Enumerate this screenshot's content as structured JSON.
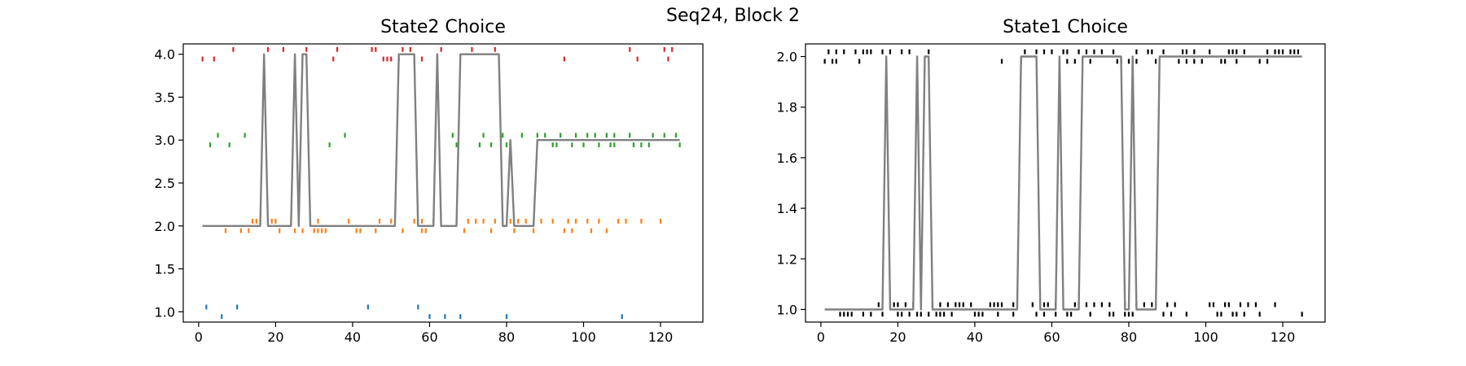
{
  "suptitle": "Seq24, Block 2",
  "chart_data": [
    {
      "type": "line",
      "title": "State2 Choice",
      "xlabel": "",
      "ylabel": "",
      "xlim": [
        -4,
        131
      ],
      "ylim": [
        0.88,
        4.12
      ],
      "xticks": [
        0,
        20,
        40,
        60,
        80,
        100,
        120
      ],
      "yticks": [
        1.0,
        1.5,
        2.0,
        2.5,
        3.0,
        3.5,
        4.0
      ],
      "ytick_labels": [
        "1.0",
        "1.5",
        "2.0",
        "2.5",
        "3.0",
        "3.5",
        "4.0"
      ],
      "tick_length": 0.0556,
      "line": {
        "color": "#808080",
        "x": [
          1,
          2,
          3,
          4,
          5,
          6,
          7,
          8,
          9,
          10,
          11,
          12,
          13,
          14,
          15,
          16,
          17,
          18,
          19,
          20,
          21,
          22,
          23,
          24,
          25,
          26,
          27,
          28,
          29,
          30,
          31,
          32,
          33,
          34,
          35,
          36,
          37,
          38,
          39,
          40,
          41,
          42,
          43,
          44,
          45,
          46,
          47,
          48,
          49,
          50,
          51,
          52,
          53,
          54,
          55,
          56,
          57,
          58,
          59,
          60,
          61,
          62,
          63,
          64,
          65,
          66,
          67,
          68,
          69,
          70,
          71,
          72,
          73,
          74,
          75,
          76,
          77,
          78,
          79,
          80,
          81,
          82,
          83,
          84,
          85,
          86,
          87,
          88,
          89,
          90,
          91,
          92,
          93,
          94,
          95,
          96,
          97,
          98,
          99,
          100,
          101,
          102,
          103,
          104,
          105,
          106,
          107,
          108,
          109,
          110,
          111,
          112,
          113,
          114,
          115,
          116,
          117,
          118,
          119,
          120,
          121,
          122,
          123,
          124,
          125
        ],
        "y": [
          2,
          2,
          2,
          2,
          2,
          2,
          2,
          2,
          2,
          2,
          2,
          2,
          2,
          2,
          2,
          2,
          4,
          2,
          2,
          2,
          2,
          2,
          2,
          2,
          4,
          2,
          4,
          4,
          2,
          2,
          2,
          2,
          2,
          2,
          2,
          2,
          2,
          2,
          2,
          2,
          2,
          2,
          2,
          2,
          2,
          2,
          2,
          2,
          2,
          2,
          2,
          4,
          4,
          4,
          4,
          4,
          2,
          2,
          2,
          2,
          2,
          4,
          2,
          2,
          2,
          2,
          2,
          4,
          4,
          4,
          4,
          4,
          4,
          4,
          4,
          4,
          4,
          4,
          2,
          2,
          3,
          2,
          2,
          2,
          2,
          2,
          2,
          3,
          3,
          3,
          3,
          3,
          3,
          3,
          3,
          3,
          3,
          3,
          3,
          3,
          3,
          3,
          3,
          3,
          3,
          3,
          3,
          3,
          3,
          3,
          3,
          3,
          3,
          3,
          3,
          3,
          3,
          3,
          3,
          3,
          3,
          3,
          3,
          3,
          3
        ]
      },
      "tick_series": [
        {
          "level": 1,
          "color": "#1f77b4",
          "up": [
            2,
            10,
            44,
            57
          ],
          "down": [
            6,
            60,
            64,
            68,
            80,
            110
          ]
        },
        {
          "level": 2,
          "color": "#ff7f0e",
          "up": [
            14,
            15,
            16,
            19,
            20,
            24,
            26,
            29,
            31,
            39,
            47,
            50,
            56,
            58,
            61,
            67,
            70,
            72,
            74,
            77,
            81,
            83,
            85,
            89,
            92,
            96,
            98,
            101,
            104,
            109,
            111,
            115,
            120
          ],
          "down": [
            7,
            11,
            13,
            21,
            25,
            27,
            30,
            31,
            32,
            33,
            41,
            42,
            46,
            53,
            58,
            59,
            69,
            76,
            82,
            87,
            95,
            97,
            102,
            106
          ]
        },
        {
          "level": 3,
          "color": "#2ca02c",
          "up": [
            5,
            12,
            38,
            66,
            74,
            79,
            84,
            88,
            90,
            94,
            98,
            101,
            103,
            106,
            108,
            112,
            118,
            121,
            124
          ],
          "down": [
            3,
            8,
            34,
            67,
            73,
            76,
            80,
            92,
            93,
            97,
            100,
            104,
            107,
            108,
            113,
            115,
            117,
            125
          ]
        },
        {
          "level": 4,
          "color": "#d62728",
          "up": [
            9,
            18,
            22,
            28,
            36,
            45,
            46,
            53,
            55,
            63,
            71,
            77,
            112,
            121,
            123
          ],
          "down": [
            1,
            4,
            35,
            48,
            49,
            50,
            52,
            58,
            62,
            95,
            114,
            122
          ]
        }
      ]
    },
    {
      "type": "line",
      "title": "State1 Choice",
      "xlabel": "",
      "ylabel": "",
      "xlim": [
        -4,
        131
      ],
      "ylim": [
        0.95,
        2.05
      ],
      "xticks": [
        0,
        20,
        40,
        60,
        80,
        100,
        120
      ],
      "yticks": [
        1.0,
        1.2,
        1.4,
        1.6,
        1.8,
        2.0
      ],
      "ytick_labels": [
        "1.0",
        "1.2",
        "1.4",
        "1.6",
        "1.8",
        "2.0"
      ],
      "tick_length": 0.0189,
      "line": {
        "color": "#808080",
        "x": [
          1,
          2,
          3,
          4,
          5,
          6,
          7,
          8,
          9,
          10,
          11,
          12,
          13,
          14,
          15,
          16,
          17,
          18,
          19,
          20,
          21,
          22,
          23,
          24,
          25,
          26,
          27,
          28,
          29,
          30,
          31,
          32,
          33,
          34,
          35,
          36,
          37,
          38,
          39,
          40,
          41,
          42,
          43,
          44,
          45,
          46,
          47,
          48,
          49,
          50,
          51,
          52,
          53,
          54,
          55,
          56,
          57,
          58,
          59,
          60,
          61,
          62,
          63,
          64,
          65,
          66,
          67,
          68,
          69,
          70,
          71,
          72,
          73,
          74,
          75,
          76,
          77,
          78,
          79,
          80,
          81,
          82,
          83,
          84,
          85,
          86,
          87,
          88,
          89,
          90,
          91,
          92,
          93,
          94,
          95,
          96,
          97,
          98,
          99,
          100,
          101,
          102,
          103,
          104,
          105,
          106,
          107,
          108,
          109,
          110,
          111,
          112,
          113,
          114,
          115,
          116,
          117,
          118,
          119,
          120,
          121,
          122,
          123,
          124,
          125
        ],
        "y": [
          1,
          1,
          1,
          1,
          1,
          1,
          1,
          1,
          1,
          1,
          1,
          1,
          1,
          1,
          1,
          1,
          2,
          1,
          1,
          1,
          1,
          1,
          1,
          1,
          2,
          1,
          2,
          2,
          1,
          1,
          1,
          1,
          1,
          1,
          1,
          1,
          1,
          1,
          1,
          1,
          1,
          1,
          1,
          1,
          1,
          1,
          1,
          1,
          1,
          1,
          1,
          2,
          2,
          2,
          2,
          2,
          1,
          1,
          1,
          1,
          1,
          2,
          1,
          1,
          1,
          1,
          1,
          2,
          2,
          2,
          2,
          2,
          2,
          2,
          2,
          2,
          2,
          2,
          1,
          1,
          2,
          1,
          1,
          1,
          1,
          1,
          1,
          2,
          2,
          2,
          2,
          2,
          2,
          2,
          2,
          2,
          2,
          2,
          2,
          2,
          2,
          2,
          2,
          2,
          2,
          2,
          2,
          2,
          2,
          2,
          2,
          2,
          2,
          2,
          2,
          2,
          2,
          2,
          2,
          2,
          2,
          2,
          2,
          2,
          2
        ]
      },
      "tick_series": [
        {
          "level": 1,
          "color": "#000000",
          "up": [
            15,
            18,
            19,
            20,
            22,
            24,
            26,
            29,
            31,
            33,
            35,
            36,
            37,
            39,
            44,
            45,
            46,
            47,
            50,
            55,
            58,
            59,
            61,
            66,
            67,
            69,
            71,
            73,
            75,
            79,
            82,
            84,
            86,
            90,
            92,
            101,
            102,
            105,
            106,
            109,
            111,
            113,
            118
          ],
          "down": [
            5,
            6,
            7,
            8,
            11,
            13,
            16,
            20,
            21,
            23,
            25,
            26,
            28,
            30,
            31,
            32,
            34,
            40,
            41,
            42,
            46,
            50,
            56,
            58,
            61,
            64,
            65,
            70,
            75,
            76,
            79,
            80,
            81,
            89,
            91,
            95,
            103,
            104,
            107,
            108,
            110,
            114,
            125
          ]
        },
        {
          "level": 2,
          "color": "#000000",
          "up": [
            2,
            4,
            6,
            9,
            11,
            12,
            13,
            16,
            18,
            21,
            23,
            28,
            53,
            56,
            58,
            60,
            63,
            64,
            67,
            69,
            71,
            73,
            76,
            82,
            85,
            86,
            89,
            94,
            95,
            97,
            101,
            106,
            107,
            108,
            110,
            116,
            118,
            119,
            120,
            122,
            123,
            124
          ],
          "down": [
            1,
            3,
            4,
            10,
            47,
            52,
            62,
            64,
            66,
            70,
            77,
            78,
            80,
            82,
            87,
            93,
            95,
            97,
            99,
            104,
            105,
            108,
            114,
            116
          ]
        }
      ]
    }
  ]
}
